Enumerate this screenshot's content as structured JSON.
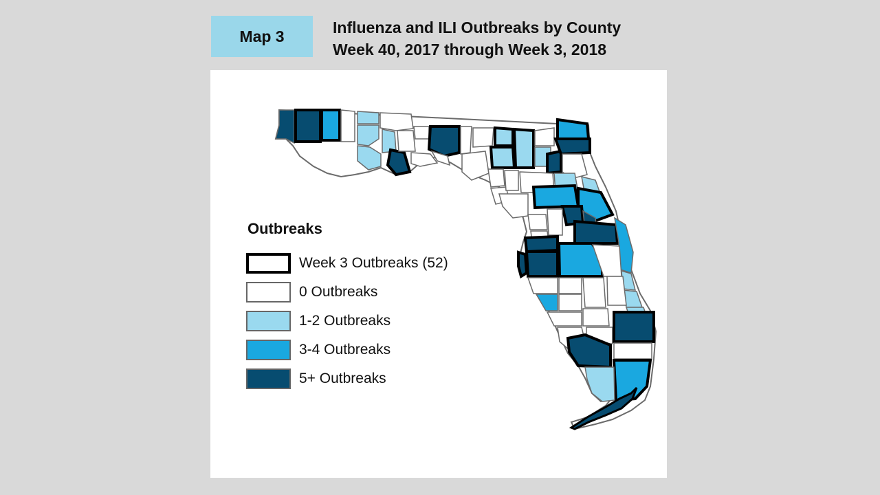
{
  "header": {
    "map_label": "Map 3",
    "title_line1": "Influenza and ILI Outbreaks by County",
    "title_line2": "Week 40, 2017 through Week 3, 2018"
  },
  "legend": {
    "title": "Outbreaks",
    "items": [
      {
        "label": "Week 3 Outbreaks (52)",
        "color": "#ffffff",
        "style": "thick-black-outline"
      },
      {
        "label": "0 Outbreaks",
        "color": "#ffffff"
      },
      {
        "label": "1-2 Outbreaks",
        "color": "#9ad9ef"
      },
      {
        "label": "3-4 Outbreaks",
        "color": "#1aa8e0"
      },
      {
        "label": "5+ Outbreaks",
        "color": "#074c70"
      }
    ]
  },
  "colors": {
    "background": "#d9d9d9",
    "panel": "#ffffff",
    "label_box": "#9ad7ea",
    "county_border": "#6b6b6b",
    "week3_border": "#000000"
  }
}
